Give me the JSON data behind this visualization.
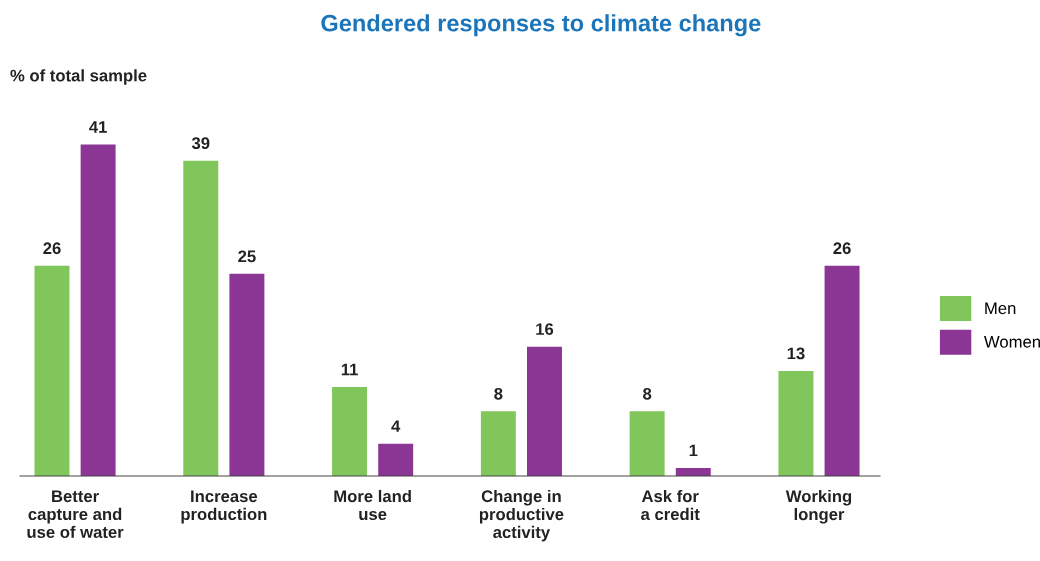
{
  "chart_data": {
    "type": "bar",
    "title": "Gendered responses to climate change",
    "ylabel": "% of total sample",
    "categories": [
      "Better\ncapture and\nuse of water",
      "Increase\nproduction",
      "More land\nuse",
      "Change in\nproductive\nactivity",
      "Ask for\na credit",
      "Working\nlonger"
    ],
    "series": [
      {
        "name": "Men",
        "color": "#80c65a",
        "values": [
          26,
          39,
          11,
          8,
          8,
          13
        ]
      },
      {
        "name": "Women",
        "color": "#8b3594",
        "values": [
          41,
          25,
          4,
          16,
          1,
          26
        ]
      }
    ],
    "data_labels": true,
    "legend": "right",
    "grid": false
  }
}
